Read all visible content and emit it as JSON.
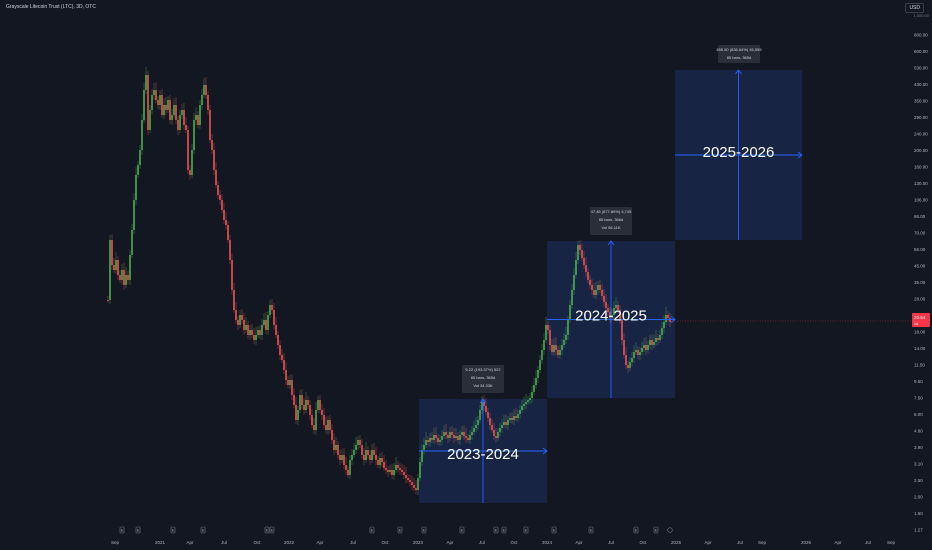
{
  "header": {
    "title": "Grayscale Litecoin Trust (LTC), 3D, OTC",
    "currency": "USD",
    "top_value": "1,000.00"
  },
  "colors": {
    "background": "#131722",
    "up": "#26a69a",
    "up_green": "#4caf50",
    "down": "#ef5350",
    "box_fill": "#1a2a4f",
    "arrow": "#2962ff",
    "price_tag": "#f23645"
  },
  "price_axis": {
    "labels": [
      "800.00",
      "600.00",
      "530.00",
      "430.00",
      "350.00",
      "290.00",
      "240.00",
      "200.00",
      "160.00",
      "130.00",
      "106.00",
      "86.00",
      "70.00",
      "56.00",
      "45.00",
      "35.00",
      "28.00",
      "22.00",
      "18.00",
      "14.00",
      "11.50",
      "9.50",
      "7.50",
      "6.00",
      "4.80",
      "3.90",
      "3.10",
      "2.50",
      "2.00",
      "1.60",
      "1.27"
    ],
    "current_price": "20.54",
    "current_sub": "1d"
  },
  "time_axis": {
    "labels": [
      "Sep",
      "2021",
      "Apr",
      "Jul",
      "Oct",
      "2022",
      "Apr",
      "Jul",
      "Oct",
      "2023",
      "Apr",
      "Jul",
      "Oct",
      "2024",
      "Apr",
      "Jul",
      "Oct",
      "2025",
      "Apr",
      "Jul",
      "Sep",
      "2026",
      "Apr",
      "Jul",
      "Sep"
    ]
  },
  "event_markers": [
    "E",
    "E",
    "E",
    "E",
    "E",
    "E",
    "E",
    "E",
    "E",
    "E",
    "E",
    "E",
    "E",
    "E",
    "E",
    "E",
    "E"
  ],
  "ranges": [
    {
      "label": "2023-2024",
      "tooltip": [
        "5.22 (193.37%) 522",
        "85 bars, 365d",
        "Vol 34.33K"
      ]
    },
    {
      "label": "2024-2025",
      "tooltip": [
        "47.45 (677.86%) 4,745",
        "85 bars, 366d",
        "Vol 56.11K"
      ]
    },
    {
      "label": "2025-2026",
      "tooltip": [
        "455.50 (836.64%) 45,555",
        "85 bars, 365d"
      ]
    }
  ]
}
